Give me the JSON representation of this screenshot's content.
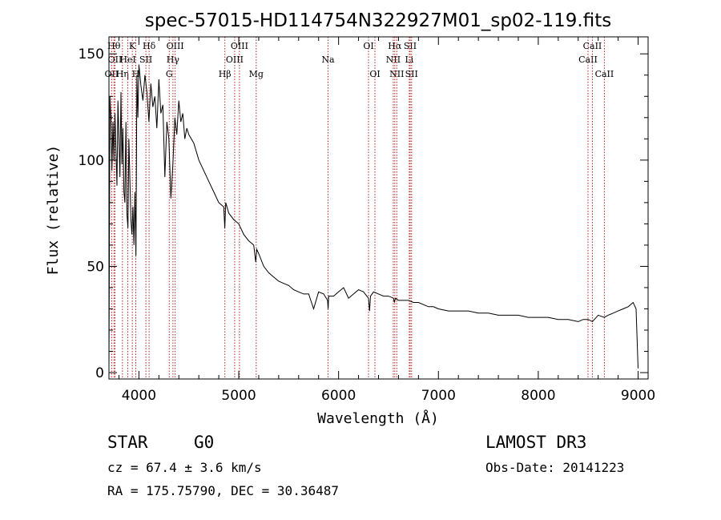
{
  "chart_data": {
    "type": "line",
    "title": "spec-57015-HD114754N322927M01_sp02-119.fits",
    "xlabel": "Wavelength (Å)",
    "ylabel": "Flux (relative)",
    "xlim": [
      3700,
      9100
    ],
    "ylim": [
      -3,
      158
    ],
    "x_ticks": [
      4000,
      5000,
      6000,
      7000,
      8000,
      9000
    ],
    "y_ticks": [
      0,
      50,
      100,
      150
    ],
    "grid": false,
    "series": [
      {
        "x": [
          3700,
          3710,
          3720,
          3730,
          3740,
          3750,
          3760,
          3770,
          3780,
          3790,
          3800,
          3810,
          3820,
          3830,
          3840,
          3850,
          3860,
          3870,
          3880,
          3890,
          3900,
          3910,
          3920,
          3930,
          3940,
          3950,
          3960,
          3970,
          3980,
          3990,
          4000,
          4020,
          4040,
          4060,
          4080,
          4100,
          4120,
          4140,
          4160,
          4180,
          4200,
          4220,
          4240,
          4260,
          4280,
          4300,
          4320,
          4340,
          4360,
          4380,
          4400,
          4420,
          4440,
          4460,
          4480,
          4500,
          4550,
          4600,
          4650,
          4700,
          4750,
          4800,
          4850,
          4860,
          4870,
          4900,
          4950,
          5000,
          5050,
          5100,
          5150,
          5170,
          5180,
          5200,
          5250,
          5300,
          5350,
          5400,
          5450,
          5500,
          5550,
          5600,
          5650,
          5700,
          5750,
          5800,
          5850,
          5890,
          5895,
          5900,
          5950,
          6000,
          6050,
          6100,
          6150,
          6200,
          6250,
          6300,
          6310,
          6320,
          6350,
          6400,
          6450,
          6500,
          6550,
          6560,
          6563,
          6570,
          6600,
          6650,
          6700,
          6750,
          6800,
          6850,
          6900,
          6950,
          7000,
          7100,
          7200,
          7300,
          7400,
          7500,
          7600,
          7700,
          7800,
          7900,
          8000,
          8100,
          8200,
          8300,
          8400,
          8450,
          8500,
          8542,
          8600,
          8662,
          8700,
          8750,
          8800,
          8850,
          8900,
          8950,
          8980,
          9000
        ],
        "y": [
          2,
          130,
          120,
          95,
          118,
          100,
          122,
          105,
          88,
          128,
          110,
          92,
          132,
          98,
          115,
          85,
          80,
          118,
          75,
          68,
          110,
          90,
          72,
          65,
          78,
          60,
          85,
          55,
          140,
          120,
          145,
          135,
          128,
          140,
          132,
          118,
          136,
          125,
          130,
          115,
          138,
          122,
          126,
          92,
          118,
          110,
          82,
          98,
          120,
          112,
          128,
          118,
          122,
          110,
          115,
          112,
          108,
          100,
          95,
          90,
          85,
          80,
          78,
          68,
          80,
          75,
          72,
          70,
          65,
          62,
          60,
          52,
          58,
          56,
          50,
          47,
          45,
          43,
          42,
          41,
          39,
          38,
          37,
          37,
          30,
          38,
          37,
          34,
          30,
          36,
          36,
          38,
          40,
          35,
          37,
          39,
          38,
          35,
          29,
          36,
          38,
          37,
          36,
          36,
          35,
          33,
          34,
          35,
          34,
          34,
          34,
          33,
          33,
          32,
          31,
          31,
          30,
          29,
          29,
          29,
          28,
          28,
          27,
          27,
          27,
          26,
          26,
          26,
          25,
          25,
          24,
          25,
          25,
          24,
          27,
          26,
          27,
          28,
          29,
          30,
          31,
          33,
          30,
          2
        ]
      }
    ],
    "line_markers": [
      {
        "label": "OII",
        "x": 3727,
        "row": 2
      },
      {
        "label": "Hθ",
        "x": 3750,
        "row": 0
      },
      {
        "label": "OII",
        "x": 3760,
        "row": 1
      },
      {
        "label": "Hη",
        "x": 3835,
        "row": 2
      },
      {
        "label": "HeI",
        "x": 3889,
        "row": 1
      },
      {
        "label": "K",
        "x": 3934,
        "row": 0
      },
      {
        "label": "H",
        "x": 3969,
        "row": 2
      },
      {
        "label": "Hδ",
        "x": 4102,
        "row": 0
      },
      {
        "label": "SII",
        "x": 4070,
        "row": 1
      },
      {
        "label": "Hγ",
        "x": 4341,
        "row": 1
      },
      {
        "label": "G",
        "x": 4304,
        "row": 2
      },
      {
        "label": "OIII",
        "x": 4363,
        "row": 0
      },
      {
        "label": "Hβ",
        "x": 4861,
        "row": 2
      },
      {
        "label": "OIII",
        "x": 4959,
        "row": 1
      },
      {
        "label": "OIII",
        "x": 5007,
        "row": 0
      },
      {
        "label": "Mg",
        "x": 5175,
        "row": 2
      },
      {
        "label": "Na",
        "x": 5894,
        "row": 1
      },
      {
        "label": "OI",
        "x": 6300,
        "row": 0
      },
      {
        "label": "OI",
        "x": 6364,
        "row": 2
      },
      {
        "label": "NII",
        "x": 6548,
        "row": 1
      },
      {
        "label": "Hα",
        "x": 6563,
        "row": 0
      },
      {
        "label": "NII",
        "x": 6583,
        "row": 2
      },
      {
        "label": "Li",
        "x": 6708,
        "row": 1
      },
      {
        "label": "SII",
        "x": 6717,
        "row": 0
      },
      {
        "label": "SII",
        "x": 6731,
        "row": 2
      },
      {
        "label": "CaII",
        "x": 8498,
        "row": 1
      },
      {
        "label": "CaII",
        "x": 8542,
        "row": 0
      },
      {
        "label": "CaII",
        "x": 8662,
        "row": 2
      }
    ]
  },
  "info": {
    "class_label": "STAR",
    "subclass": "G0",
    "survey": "LAMOST DR3",
    "redshift": "cz = 67.4 ± 3.6 km/s",
    "obs_date": "Obs-Date: 20141223",
    "coords": "RA = 175.75790, DEC =  30.36487"
  }
}
